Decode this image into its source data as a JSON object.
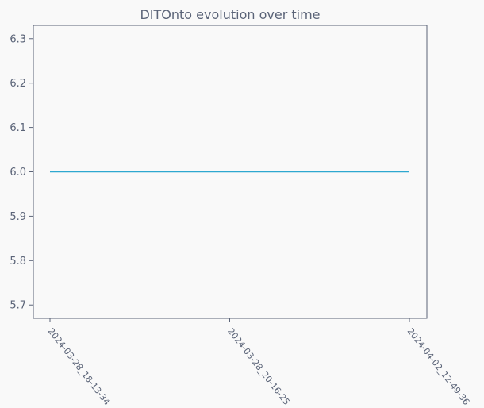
{
  "chart_data": {
    "type": "line",
    "title": "DITOnto evolution over time",
    "xlabel": "",
    "ylabel": "",
    "x": [
      "2024-03-28_18-13-34",
      "2024-03-28_20-16-25",
      "2024-04-02_12-49-36"
    ],
    "series": [
      {
        "values": [
          6.0,
          6.0,
          6.0
        ]
      }
    ],
    "ylim": [
      5.67,
      6.33
    ],
    "yticks": [
      "5.7",
      "5.8",
      "5.9",
      "6.0",
      "6.1",
      "6.2",
      "6.3"
    ],
    "grid": false,
    "legend": "none"
  },
  "colors": {
    "line": "#2ea8d0",
    "axes": "#5b6478",
    "text": "#5b6478",
    "background": "#f9f9f9"
  }
}
